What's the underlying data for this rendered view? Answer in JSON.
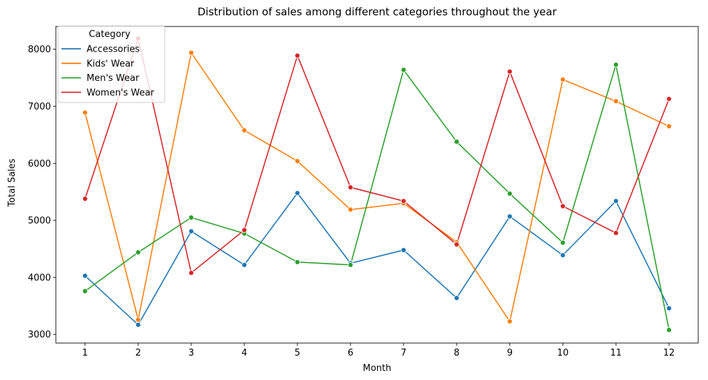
{
  "chart_data": {
    "type": "line",
    "title": "Distribution of sales among different categories throughout the year",
    "xlabel": "Month",
    "ylabel": "Total Sales",
    "x": [
      1,
      2,
      3,
      4,
      5,
      6,
      7,
      8,
      9,
      10,
      11,
      12
    ],
    "xticks": [
      "1",
      "2",
      "3",
      "4",
      "5",
      "6",
      "7",
      "8",
      "9",
      "10",
      "11",
      "12"
    ],
    "yticks": [
      "3000",
      "4000",
      "5000",
      "6000",
      "7000",
      "8000"
    ],
    "xlim": [
      0.45,
      12.55
    ],
    "ylim": [
      2850,
      8400
    ],
    "grid": false,
    "legend": {
      "title": "Category",
      "placement": "top-left"
    },
    "series": [
      {
        "name": "Accessories",
        "color": "#1f77b4",
        "values": [
          4030,
          3170,
          4810,
          4220,
          5480,
          4250,
          4480,
          3640,
          5070,
          4390,
          5340,
          3460
        ]
      },
      {
        "name": "Kids' Wear",
        "color": "#ff7f0e",
        "values": [
          6890,
          3260,
          7940,
          6580,
          6040,
          5190,
          5300,
          4620,
          3230,
          7470,
          7090,
          6650
        ]
      },
      {
        "name": "Men's Wear",
        "color": "#2ca02c",
        "values": [
          3760,
          4440,
          5050,
          4770,
          4270,
          4220,
          7640,
          6380,
          5470,
          4610,
          7730,
          3080
        ]
      },
      {
        "name": "Women's Wear",
        "color": "#d62728",
        "values": [
          5380,
          8190,
          4080,
          4830,
          7890,
          5580,
          5340,
          4580,
          7610,
          5250,
          4780,
          7130
        ]
      }
    ]
  }
}
